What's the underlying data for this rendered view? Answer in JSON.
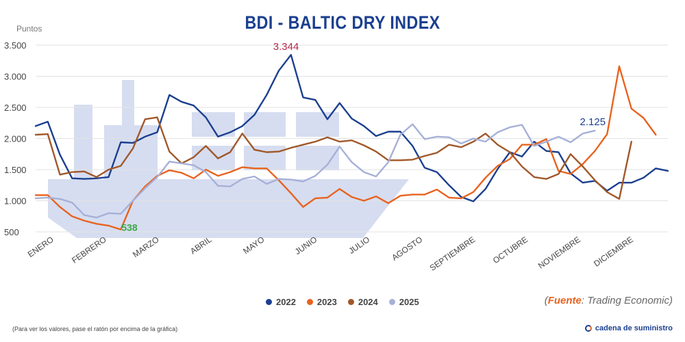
{
  "title": "BDI - BALTIC DRY INDEX",
  "chart_data": {
    "type": "line",
    "title": "BDI - BALTIC DRY INDEX",
    "ylabel": "Puntos",
    "xlabel": "",
    "ylim": [
      500,
      3500
    ],
    "yticks": [
      500,
      1000,
      1500,
      2000,
      2500,
      3000,
      3500
    ],
    "ytick_labels": [
      "500",
      "1.000",
      "1.500",
      "2.000",
      "2.500",
      "3.000",
      "3.500"
    ],
    "months": [
      "ENERO",
      "FEBRERO",
      "MARZO",
      "ABRIL",
      "MAYO",
      "JUNIO",
      "JULIO",
      "AGOSTO",
      "SEPTIEMBRE",
      "OCTUBRE",
      "NOVIEMBRE",
      "DICIEMBRE"
    ],
    "grid": true,
    "legend": "bottom-center",
    "series": [
      {
        "name": "2022",
        "color": "#1b3f8f",
        "values": [
          2200,
          2270,
          1740,
          1360,
          1350,
          1360,
          1380,
          1940,
          1930,
          2030,
          2100,
          2700,
          2590,
          2530,
          2340,
          2030,
          2100,
          2200,
          2380,
          2700,
          3090,
          3344,
          2660,
          2620,
          2310,
          2570,
          2320,
          2200,
          2040,
          2110,
          2110,
          1880,
          1530,
          1460,
          1250,
          1060,
          990,
          1190,
          1510,
          1780,
          1710,
          1950,
          1800,
          1780,
          1440,
          1290,
          1320,
          1160,
          1290,
          1290,
          1370,
          1520,
          1480
        ]
      },
      {
        "name": "2023",
        "color": "#e8631f",
        "values": [
          1090,
          1090,
          900,
          750,
          680,
          630,
          600,
          538,
          1000,
          1230,
          1400,
          1490,
          1450,
          1360,
          1500,
          1400,
          1460,
          1540,
          1520,
          1520,
          1330,
          1120,
          900,
          1040,
          1050,
          1190,
          1060,
          1000,
          1070,
          960,
          1080,
          1100,
          1100,
          1180,
          1050,
          1040,
          1140,
          1370,
          1560,
          1670,
          1900,
          1900,
          1990,
          1480,
          1430,
          1590,
          1800,
          2070,
          3160,
          2480,
          2330,
          2060
        ]
      },
      {
        "name": "2024",
        "color": "#a0582a",
        "values": [
          2060,
          2070,
          1420,
          1460,
          1470,
          1380,
          1500,
          1560,
          1840,
          2310,
          2340,
          1790,
          1600,
          1700,
          1880,
          1680,
          1780,
          2080,
          1820,
          1780,
          1790,
          1850,
          1900,
          1950,
          2020,
          1950,
          1970,
          1890,
          1790,
          1650,
          1650,
          1660,
          1720,
          1770,
          1900,
          1860,
          1950,
          2080,
          1900,
          1780,
          1550,
          1380,
          1350,
          1430,
          1750,
          1550,
          1330,
          1140,
          1030,
          1950
        ]
      },
      {
        "name": "2025",
        "color": "#a6b0d8",
        "values": [
          1040,
          1050,
          1030,
          970,
          770,
          730,
          800,
          790,
          1000,
          1200,
          1380,
          1630,
          1600,
          1570,
          1460,
          1240,
          1230,
          1350,
          1390,
          1270,
          1350,
          1340,
          1310,
          1400,
          1580,
          1870,
          1620,
          1460,
          1390,
          1620,
          2060,
          2230,
          1990,
          2030,
          2020,
          1920,
          2000,
          1950,
          2100,
          2180,
          2220,
          1880,
          1950,
          2030,
          1940,
          2080,
          2125
        ]
      }
    ],
    "annotations": [
      {
        "text": "3.344",
        "series": "2022",
        "color": "#b5284a"
      },
      {
        "text": "538",
        "series": "2023",
        "color": "#3aa845"
      },
      {
        "text": "2.125",
        "series": "2025",
        "color": "#1b3f8f"
      }
    ]
  },
  "legend": {
    "label_2022": "2022",
    "label_2023": "2023",
    "label_2024": "2024",
    "label_2025": "2025"
  },
  "source": {
    "label": "Fuente",
    "text": ": Trading Economic)",
    "open": "("
  },
  "footnote": "(Para ver los valores, pase el ratón por encima de la gráfica)",
  "brand": {
    "text": "cadena de suministro"
  }
}
